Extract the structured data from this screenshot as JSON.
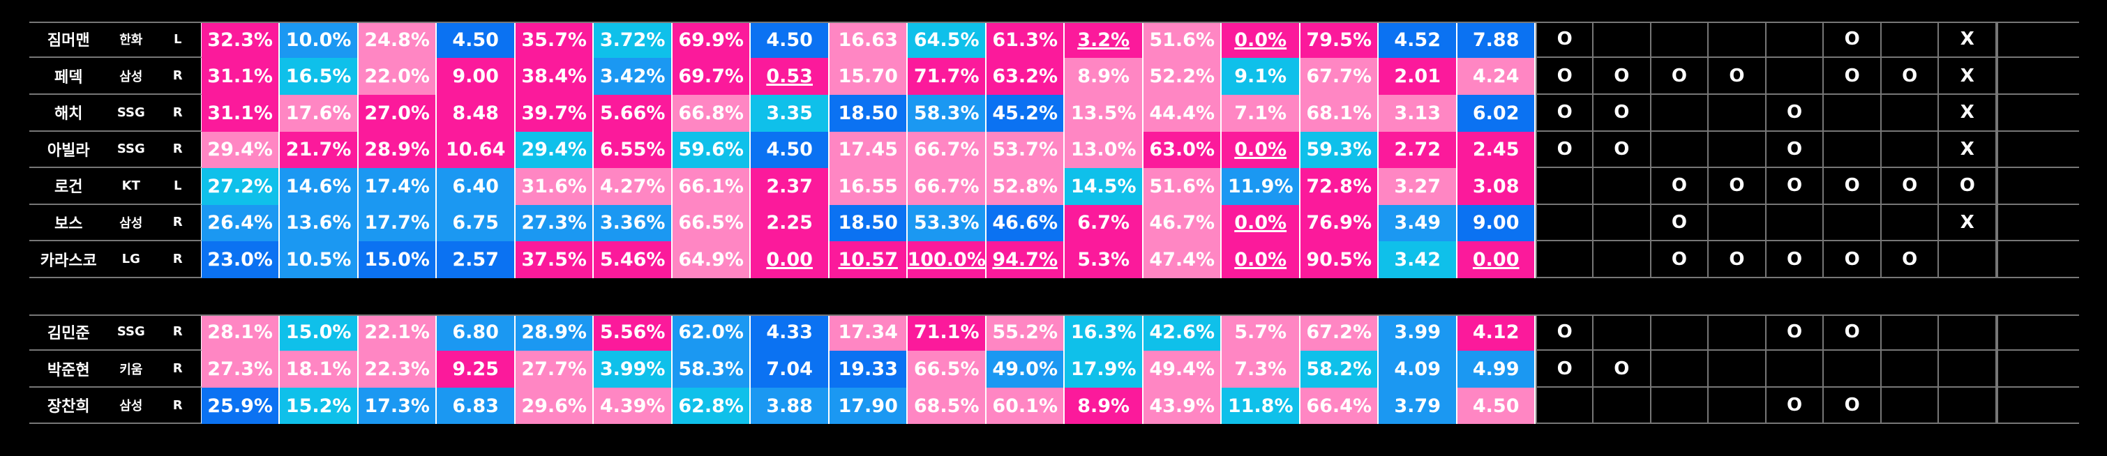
{
  "palette": {
    "P": "#fb1a9b",
    "p": "#ff86c3",
    "B": "#0b72f2",
    "b": "#1b98f2",
    "c": "#0fc0ea"
  },
  "sections": [
    {
      "rows": [
        {
          "name": "짐머맨",
          "team": "한화",
          "hand": "L",
          "cells": [
            "32.3%",
            "10.0%",
            "24.8%",
            "4.50",
            "35.7%",
            "3.72%",
            "69.9%",
            "4.50",
            "16.63",
            "64.5%",
            "61.3%",
            "3.2%",
            "51.6%",
            "0.0%",
            "79.5%",
            "4.52",
            "7.88"
          ],
          "cell_colors": [
            "P",
            "b",
            "p",
            "B",
            "P",
            "c",
            "P",
            "B",
            "p",
            "c",
            "P",
            "P",
            "p",
            "P",
            "P",
            "B",
            "B"
          ],
          "underlined": [
            11,
            13
          ],
          "marks": [
            "O",
            null,
            null,
            null,
            null,
            "O",
            null,
            "X"
          ]
        },
        {
          "name": "페덱",
          "team": "삼성",
          "hand": "R",
          "cells": [
            "31.1%",
            "16.5%",
            "22.0%",
            "9.00",
            "38.4%",
            "3.42%",
            "69.7%",
            "0.53",
            "15.70",
            "71.7%",
            "63.2%",
            "8.9%",
            "52.2%",
            "9.1%",
            "67.7%",
            "2.01",
            "4.24"
          ],
          "cell_colors": [
            "P",
            "c",
            "p",
            "P",
            "P",
            "b",
            "P",
            "P",
            "p",
            "P",
            "P",
            "p",
            "p",
            "c",
            "p",
            "P",
            "p"
          ],
          "underlined": [
            7
          ],
          "marks": [
            "O",
            "O",
            "O",
            "O",
            null,
            "O",
            "O",
            "X"
          ]
        },
        {
          "name": "해치",
          "team": "SSG",
          "hand": "R",
          "cells": [
            "31.1%",
            "17.6%",
            "27.0%",
            "8.48",
            "39.7%",
            "5.66%",
            "66.8%",
            "3.35",
            "18.50",
            "58.3%",
            "45.2%",
            "13.5%",
            "44.4%",
            "7.1%",
            "68.1%",
            "3.13",
            "6.02"
          ],
          "cell_colors": [
            "P",
            "p",
            "P",
            "P",
            "P",
            "P",
            "p",
            "c",
            "B",
            "b",
            "B",
            "p",
            "p",
            "p",
            "p",
            "p",
            "B"
          ],
          "underlined": [],
          "marks": [
            "O",
            "O",
            null,
            null,
            "O",
            null,
            null,
            "X"
          ]
        },
        {
          "name": "아빌라",
          "team": "SSG",
          "hand": "R",
          "cells": [
            "29.4%",
            "21.7%",
            "28.9%",
            "10.64",
            "29.4%",
            "6.55%",
            "59.6%",
            "4.50",
            "17.45",
            "66.7%",
            "53.7%",
            "13.0%",
            "63.0%",
            "0.0%",
            "59.3%",
            "2.72",
            "2.45"
          ],
          "cell_colors": [
            "p",
            "P",
            "P",
            "P",
            "c",
            "P",
            "c",
            "B",
            "p",
            "p",
            "p",
            "p",
            "P",
            "P",
            "c",
            "P",
            "P"
          ],
          "underlined": [
            13
          ],
          "marks": [
            "O",
            "O",
            null,
            null,
            "O",
            null,
            null,
            "X"
          ]
        },
        {
          "name": "로건",
          "team": "KT",
          "hand": "L",
          "cells": [
            "27.2%",
            "14.6%",
            "17.4%",
            "6.40",
            "31.6%",
            "4.27%",
            "66.1%",
            "2.37",
            "16.55",
            "66.7%",
            "52.8%",
            "14.5%",
            "51.6%",
            "11.9%",
            "72.8%",
            "3.27",
            "3.08"
          ],
          "cell_colors": [
            "c",
            "b",
            "b",
            "b",
            "p",
            "p",
            "p",
            "P",
            "p",
            "p",
            "p",
            "c",
            "p",
            "b",
            "P",
            "p",
            "P"
          ],
          "underlined": [],
          "marks": [
            null,
            null,
            "O",
            "O",
            "O",
            "O",
            "O",
            "O"
          ]
        },
        {
          "name": "보스",
          "team": "삼성",
          "hand": "R",
          "cells": [
            "26.4%",
            "13.6%",
            "17.7%",
            "6.75",
            "27.3%",
            "3.36%",
            "66.5%",
            "2.25",
            "18.50",
            "53.3%",
            "46.6%",
            "6.7%",
            "46.7%",
            "0.0%",
            "76.9%",
            "3.49",
            "9.00"
          ],
          "cell_colors": [
            "b",
            "b",
            "b",
            "b",
            "b",
            "b",
            "p",
            "P",
            "B",
            "b",
            "B",
            "P",
            "p",
            "P",
            "P",
            "b",
            "B"
          ],
          "underlined": [
            13
          ],
          "marks": [
            null,
            null,
            "O",
            null,
            null,
            null,
            null,
            "X"
          ]
        },
        {
          "name": "카라스코",
          "team": "LG",
          "hand": "R",
          "cells": [
            "23.0%",
            "10.5%",
            "15.0%",
            "2.57",
            "37.5%",
            "5.46%",
            "64.9%",
            "0.00",
            "10.57",
            "100.0%",
            "94.7%",
            "5.3%",
            "47.4%",
            "0.0%",
            "90.5%",
            "3.42",
            "0.00"
          ],
          "cell_colors": [
            "B",
            "b",
            "B",
            "B",
            "P",
            "P",
            "p",
            "P",
            "P",
            "P",
            "P",
            "P",
            "p",
            "P",
            "P",
            "c",
            "P"
          ],
          "underlined": [
            7,
            8,
            9,
            10,
            13,
            16
          ],
          "marks": [
            null,
            null,
            "O",
            "O",
            "O",
            "O",
            "O",
            null
          ]
        }
      ]
    },
    {
      "rows": [
        {
          "name": "김민준",
          "team": "SSG",
          "hand": "R",
          "cells": [
            "28.1%",
            "15.0%",
            "22.1%",
            "6.80",
            "28.9%",
            "5.56%",
            "62.0%",
            "4.33",
            "17.34",
            "71.1%",
            "55.2%",
            "16.3%",
            "42.6%",
            "5.7%",
            "67.2%",
            "3.99",
            "4.12"
          ],
          "cell_colors": [
            "p",
            "c",
            "p",
            "b",
            "b",
            "P",
            "b",
            "B",
            "p",
            "P",
            "p",
            "c",
            "c",
            "p",
            "p",
            "b",
            "P"
          ],
          "underlined": [],
          "marks": [
            "O",
            null,
            null,
            null,
            "O",
            "O",
            null,
            null
          ]
        },
        {
          "name": "박준현",
          "team": "키움",
          "hand": "R",
          "cells": [
            "27.3%",
            "18.1%",
            "22.3%",
            "9.25",
            "27.7%",
            "3.99%",
            "58.3%",
            "7.04",
            "19.33",
            "66.5%",
            "49.0%",
            "17.9%",
            "49.4%",
            "7.3%",
            "58.2%",
            "4.09",
            "4.99"
          ],
          "cell_colors": [
            "p",
            "p",
            "p",
            "P",
            "p",
            "c",
            "b",
            "B",
            "B",
            "p",
            "b",
            "c",
            "p",
            "p",
            "c",
            "b",
            "b"
          ],
          "underlined": [],
          "marks": [
            "O",
            "O",
            null,
            null,
            null,
            null,
            null,
            null
          ]
        },
        {
          "name": "장찬희",
          "team": "삼성",
          "hand": "R",
          "cells": [
            "25.9%",
            "15.2%",
            "17.3%",
            "6.83",
            "29.6%",
            "4.39%",
            "62.8%",
            "3.88",
            "17.90",
            "68.5%",
            "60.1%",
            "8.9%",
            "43.9%",
            "11.8%",
            "66.4%",
            "3.79",
            "4.50"
          ],
          "cell_colors": [
            "B",
            "c",
            "b",
            "b",
            "p",
            "p",
            "c",
            "b",
            "b",
            "p",
            "p",
            "P",
            "p",
            "c",
            "p",
            "b",
            "p"
          ],
          "underlined": [],
          "marks": [
            null,
            null,
            null,
            null,
            "O",
            "O",
            null,
            null
          ]
        }
      ]
    }
  ]
}
